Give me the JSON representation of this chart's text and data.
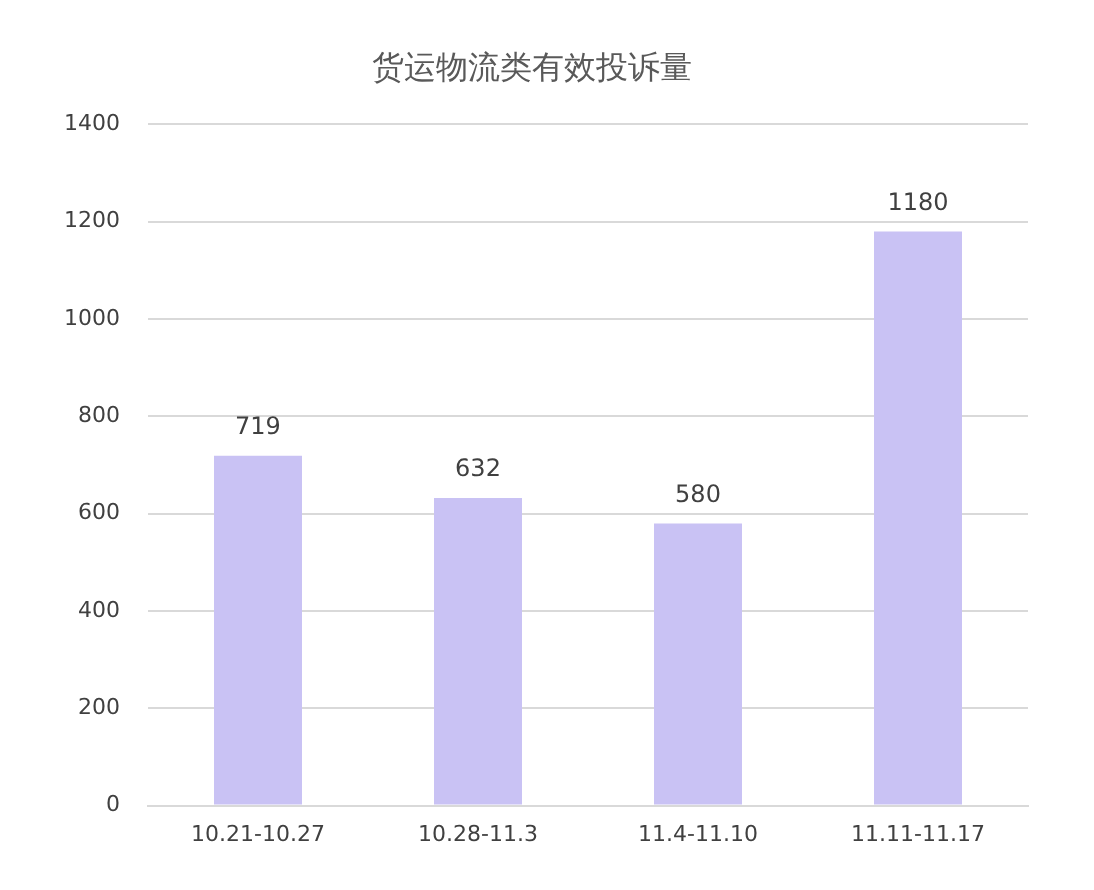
{
  "chart_data": {
    "type": "bar",
    "title": "货运物流类有效投诉量",
    "categories": [
      "10.21-10.27",
      "10.28-11.3",
      "11.4-11.10",
      "11.11-11.17"
    ],
    "values": [
      719,
      632,
      580,
      1180
    ],
    "color": "#c9c2f4",
    "ylim": [
      0,
      1400
    ],
    "yticks": [
      0,
      200,
      400,
      600,
      800,
      1000,
      1200,
      1400
    ],
    "grid": "y",
    "data_labels": true,
    "legend": false
  }
}
